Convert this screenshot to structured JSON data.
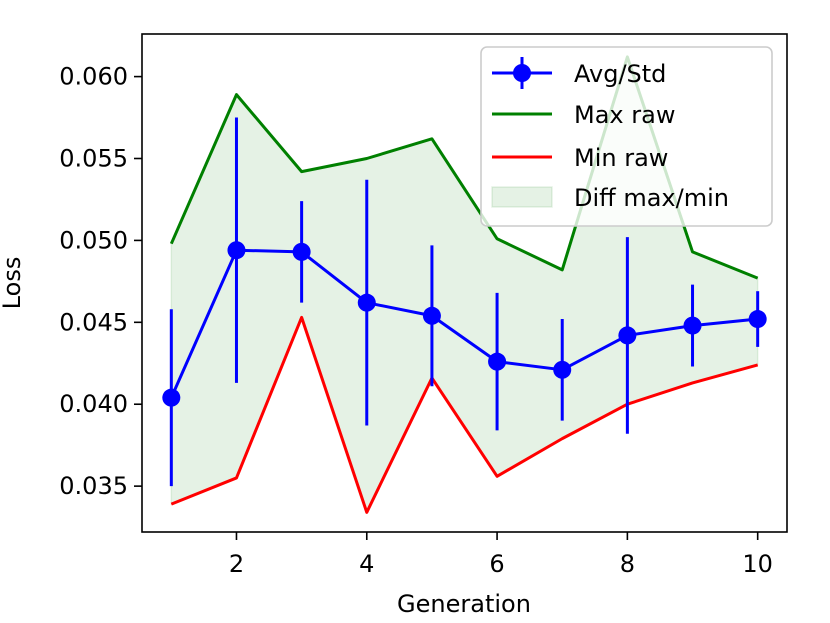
{
  "chart_data": {
    "type": "line",
    "title": "",
    "xlabel": "Generation",
    "ylabel": "Loss",
    "x": [
      1,
      2,
      3,
      4,
      5,
      6,
      7,
      8,
      9,
      10
    ],
    "xlim": [
      0.55,
      10.45
    ],
    "ylim": [
      0.0322,
      0.0626
    ],
    "xticks": [
      2,
      4,
      6,
      8,
      10
    ],
    "xtick_labels": [
      "2",
      "4",
      "6",
      "8",
      "10"
    ],
    "yticks": [
      0.035,
      0.04,
      0.045,
      0.05,
      0.055,
      0.06
    ],
    "ytick_labels": [
      "0.035",
      "0.040",
      "0.045",
      "0.050",
      "0.055",
      "0.060"
    ],
    "grid": false,
    "legend_position": "top-right",
    "series": [
      {
        "name": "Avg/Std",
        "kind": "errorbar",
        "color": "#0000ff",
        "values": [
          0.0404,
          0.0494,
          0.0493,
          0.0462,
          0.0454,
          0.0426,
          0.0421,
          0.0442,
          0.0448,
          0.0452
        ],
        "std": [
          0.0054,
          0.0081,
          0.0031,
          0.0075,
          0.0043,
          0.0042,
          0.0031,
          0.006,
          0.0025,
          0.0017
        ]
      },
      {
        "name": "Max raw",
        "kind": "line",
        "color": "#008000",
        "values": [
          0.0498,
          0.0589,
          0.0542,
          0.055,
          0.0562,
          0.0501,
          0.0482,
          0.0612,
          0.0493,
          0.0477
        ]
      },
      {
        "name": "Min raw",
        "kind": "line",
        "color": "#ff0000",
        "values": [
          0.0339,
          0.0355,
          0.0453,
          0.0334,
          0.0416,
          0.0356,
          0.0379,
          0.04,
          0.0413,
          0.0424
        ]
      },
      {
        "name": "Diff max/min",
        "kind": "fill_between",
        "color": "#008000",
        "opacity": 0.1
      }
    ],
    "legend": [
      "Avg/Std",
      "Max raw",
      "Min raw",
      "Diff max/min"
    ]
  }
}
